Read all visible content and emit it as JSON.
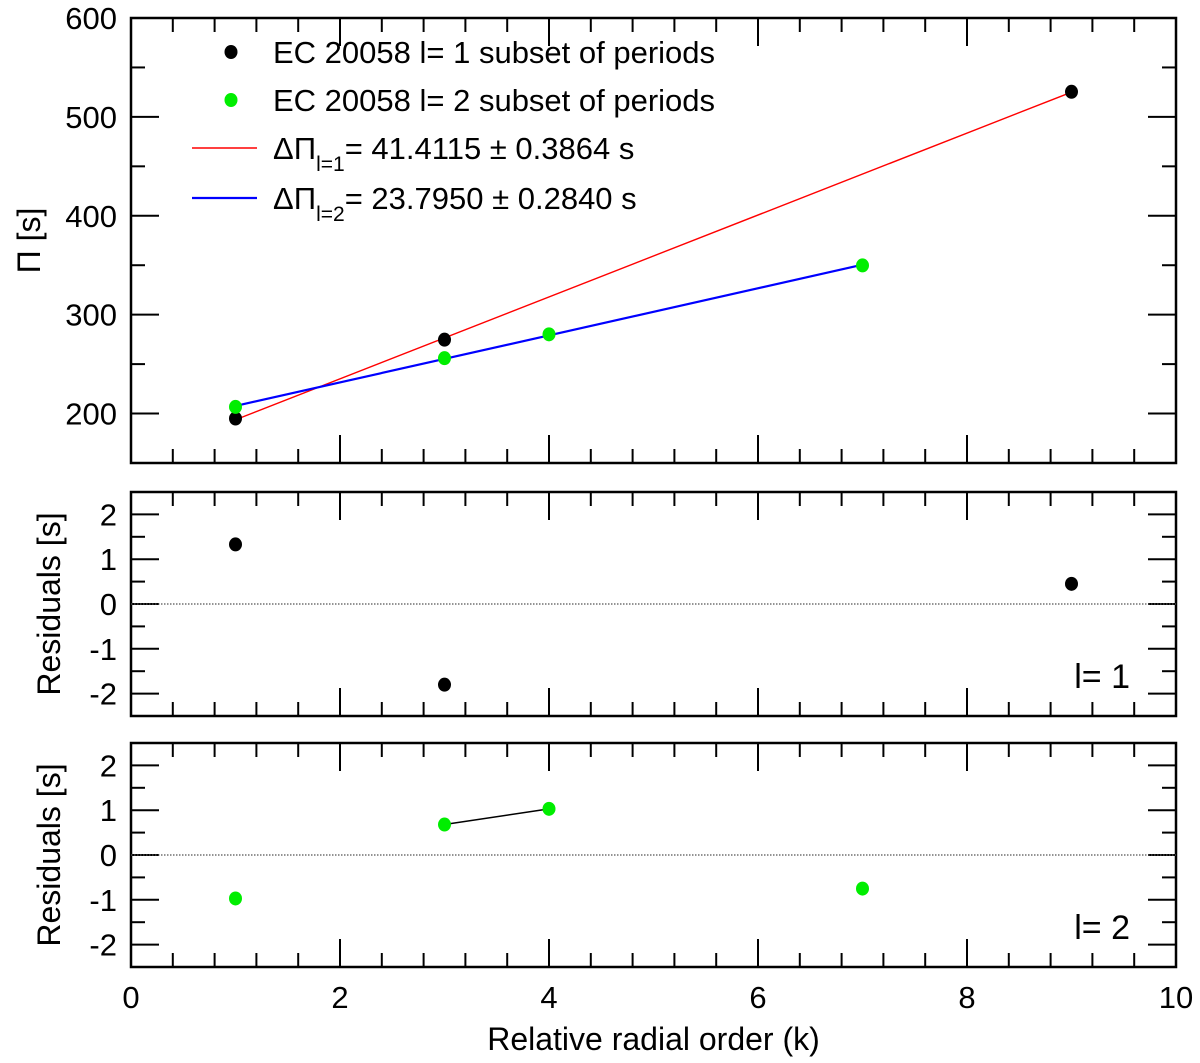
{
  "chart_data": [
    {
      "type": "scatter",
      "panel": "periods",
      "ylabel": "Π [s]",
      "xlim": [
        0,
        10
      ],
      "ylim": [
        150,
        600
      ],
      "yticks": [
        200,
        300,
        400,
        500,
        600
      ],
      "grid": false,
      "legend_placement": "top-left",
      "series": [
        {
          "name": "EC 20058 l= 1 subset of periods",
          "kind": "points",
          "color": "#000000",
          "x": [
            1,
            3,
            9
          ],
          "y": [
            195.0,
            274.7,
            525.4
          ]
        },
        {
          "name": "EC 20058 l= 2 subset of periods",
          "kind": "points",
          "color": "#00ee00",
          "x": [
            1,
            3,
            4,
            7
          ],
          "y": [
            206.7,
            256.0,
            280.1,
            349.8
          ]
        },
        {
          "name": "ΔΠ",
          "subscript": "l=1",
          "label_rest": "= 41.4115 ± 0.3864 s",
          "kind": "line",
          "color": "#ff0000",
          "x": [
            1,
            9
          ],
          "y": [
            193.7,
            525.0
          ]
        },
        {
          "name": "ΔΠ",
          "subscript": "l=2",
          "label_rest": "= 23.7950 ± 0.2840 s",
          "kind": "line",
          "color": "#0000ff",
          "x": [
            1,
            7
          ],
          "y": [
            207.7,
            350.5
          ]
        }
      ]
    },
    {
      "type": "scatter",
      "panel": "residuals-l1",
      "ylabel": "Residuals [s]",
      "annotation": "l= 1",
      "xlim": [
        0,
        10
      ],
      "ylim": [
        -2.5,
        2.5
      ],
      "yticks": [
        -2,
        -1,
        0,
        1,
        2
      ],
      "series": [
        {
          "color": "#000000",
          "x": [
            1,
            3,
            9
          ],
          "y": [
            1.33,
            -1.8,
            0.45
          ]
        }
      ]
    },
    {
      "type": "scatter",
      "panel": "residuals-l2",
      "ylabel": "Residuals [s]",
      "annotation": "l= 2",
      "xlabel": "Relative radial order (k)",
      "xlim": [
        0,
        10
      ],
      "ylim": [
        -2.5,
        2.5
      ],
      "xticks": [
        0,
        2,
        4,
        6,
        8,
        10
      ],
      "yticks": [
        -2,
        -1,
        0,
        1,
        2
      ],
      "series": [
        {
          "color": "#00ee00",
          "x": [
            1,
            3,
            4,
            7
          ],
          "y": [
            -0.97,
            0.68,
            1.03,
            -0.75
          ],
          "connected_segment_x": [
            3,
            4
          ]
        }
      ]
    }
  ]
}
